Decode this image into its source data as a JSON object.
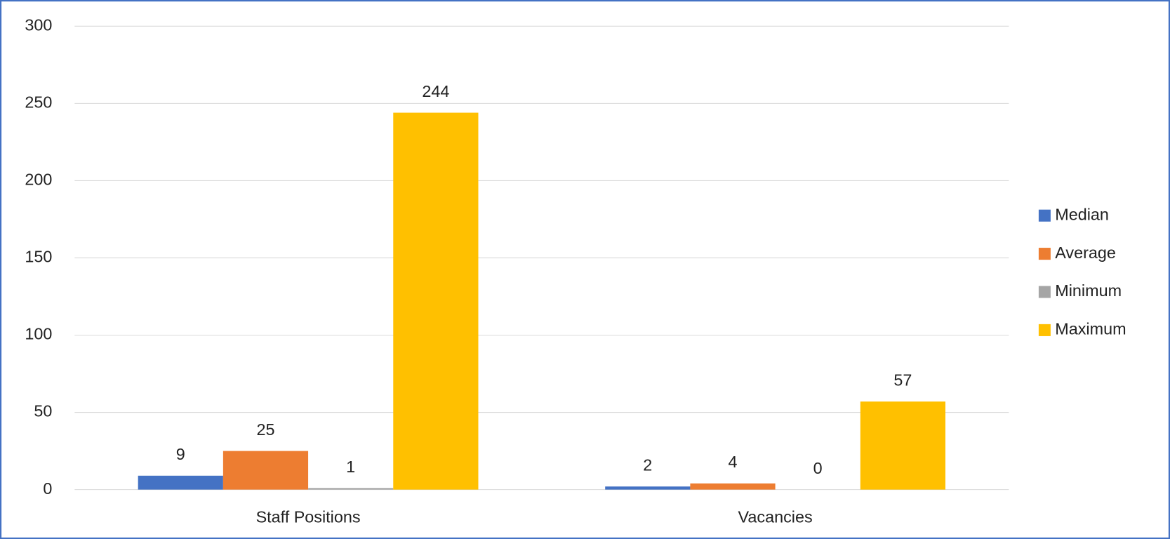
{
  "chart_data": {
    "type": "bar",
    "categories": [
      "Staff Positions",
      "Vacancies"
    ],
    "series": [
      {
        "name": "Median",
        "color": "#4472c4",
        "values": [
          9,
          2
        ]
      },
      {
        "name": "Average",
        "color": "#ed7d31",
        "values": [
          25,
          4
        ]
      },
      {
        "name": "Minimum",
        "color": "#a5a5a5",
        "values": [
          1,
          0
        ]
      },
      {
        "name": "Maximum",
        "color": "#ffc000",
        "values": [
          244,
          57
        ]
      }
    ],
    "ylim": [
      0,
      300
    ],
    "yticks": [
      0,
      50,
      100,
      150,
      200,
      250,
      300
    ],
    "grid": true,
    "legend": "right",
    "data_labels": true
  }
}
